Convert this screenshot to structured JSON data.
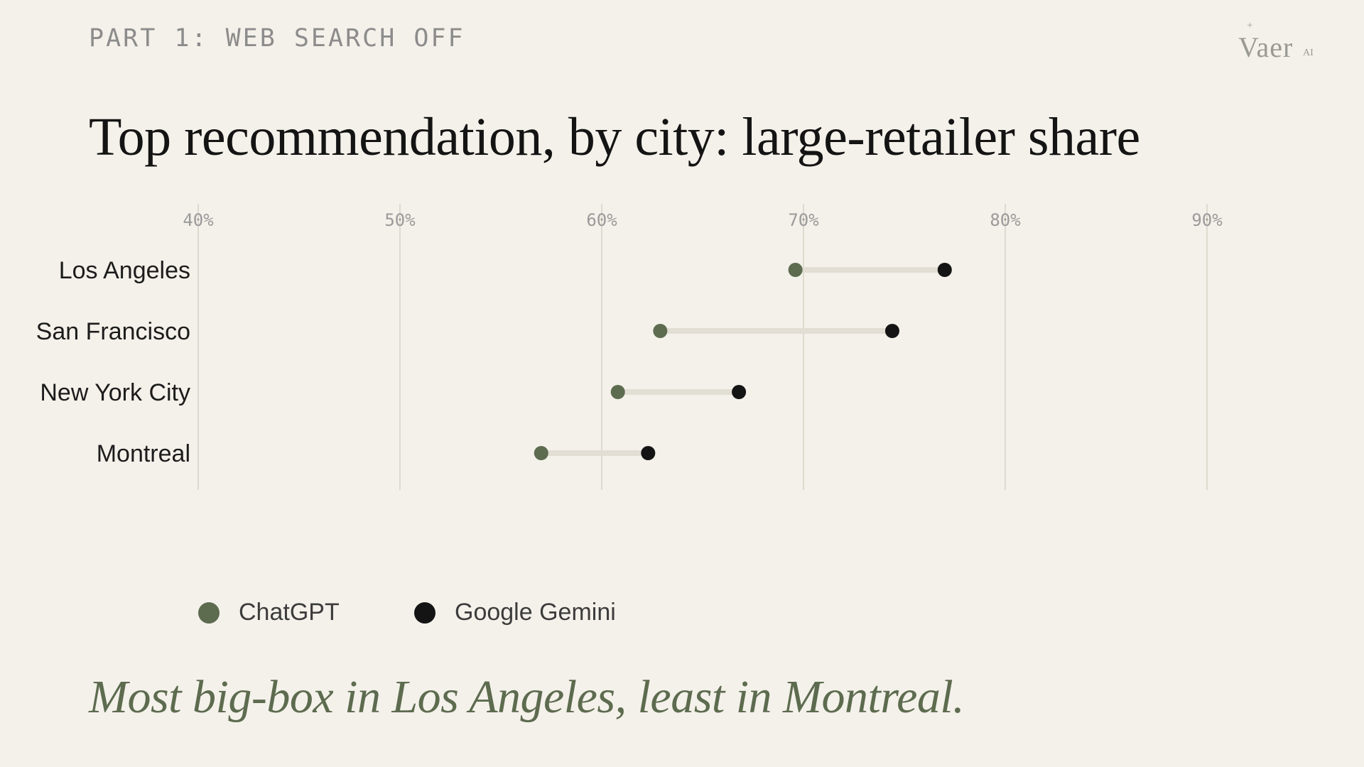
{
  "header": {
    "eyebrow": "PART 1: WEB SEARCH OFF",
    "logo_text": "Vaer",
    "logo_sub": "AI",
    "logo_mark": "+"
  },
  "title": "Top recommendation, by city: large-retailer share",
  "caption": "Most big-box in Los Angeles, least in Montreal.",
  "colors": {
    "background": "#f4f1ea",
    "chatgpt": "#5d6b4f",
    "gemini": "#141414",
    "connector": "#e2ded4",
    "gridline": "#dedad0"
  },
  "chart_data": {
    "type": "scatter",
    "subtype": "dumbbell",
    "x_ticks": [
      "40%",
      "50%",
      "60%",
      "70%",
      "80%",
      "90%"
    ],
    "x_tick_values": [
      40,
      50,
      60,
      70,
      80,
      90
    ],
    "xlim": [
      40,
      90
    ],
    "categories": [
      "Los Angeles",
      "San Francisco",
      "New York City",
      "Montreal"
    ],
    "series": [
      {
        "name": "ChatGPT",
        "color": "#5d6b4f",
        "values": [
          69.6,
          62.9,
          60.8,
          57.0
        ]
      },
      {
        "name": "Google Gemini",
        "color": "#141414",
        "values": [
          77.0,
          74.4,
          66.8,
          62.3
        ]
      }
    ],
    "grid": true,
    "legend_position": "bottom-left"
  }
}
